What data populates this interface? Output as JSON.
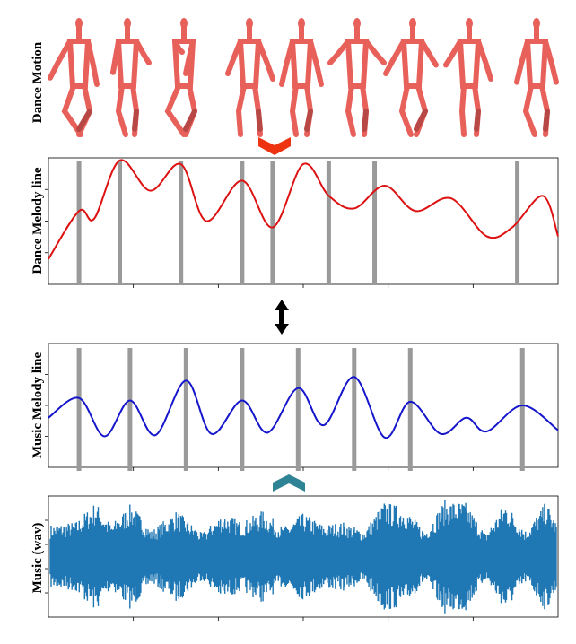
{
  "labels": {
    "dance_motion": "Dance Motion",
    "dance_melody": "Dance Melody line",
    "music_melody": "Music Melody line",
    "music_wav": "Music (wav)"
  },
  "colors": {
    "dancer": "#e8605a",
    "dancer_dark": "#b84845",
    "dance_line": "#dd1111",
    "music_line": "#1515cc",
    "beat_bar": "#9a9a9a",
    "wave": "#1f77b4",
    "arrow_down": "#ee3311",
    "arrow_up": "#2e8494",
    "double_arrow": "#000000"
  },
  "icons": {
    "dancer": "stick-figure-dancer-icon",
    "down_chevron": "chevron-down-icon",
    "up_chevron": "chevron-up-icon",
    "double_arrow": "double-arrow-vertical-icon"
  },
  "dance_poses": 9,
  "chart_data": [
    {
      "type": "line",
      "ylabel": "Dance Melody line",
      "series": [
        {
          "x": [
            0.0,
            0.06,
            0.09,
            0.14,
            0.2,
            0.26,
            0.31,
            0.38,
            0.44,
            0.5,
            0.55,
            0.6,
            0.66,
            0.72,
            0.79,
            0.86,
            0.91,
            0.97,
            1.0
          ],
          "y": [
            0.2,
            0.58,
            0.52,
            0.98,
            0.74,
            0.95,
            0.5,
            0.82,
            0.45,
            0.95,
            0.7,
            0.6,
            0.78,
            0.58,
            0.68,
            0.38,
            0.45,
            0.7,
            0.38
          ]
        }
      ],
      "beat_markers": [
        0.06,
        0.14,
        0.26,
        0.38,
        0.44,
        0.55,
        0.64,
        0.92
      ],
      "grid": false
    },
    {
      "type": "line",
      "ylabel": "Music Melody line",
      "series": [
        {
          "x": [
            0.0,
            0.06,
            0.11,
            0.16,
            0.21,
            0.27,
            0.32,
            0.38,
            0.43,
            0.49,
            0.54,
            0.6,
            0.66,
            0.71,
            0.77,
            0.82,
            0.86,
            0.93,
            1.0
          ],
          "y": [
            0.4,
            0.56,
            0.25,
            0.54,
            0.26,
            0.7,
            0.27,
            0.54,
            0.28,
            0.64,
            0.34,
            0.73,
            0.24,
            0.53,
            0.27,
            0.4,
            0.29,
            0.5,
            0.3
          ]
        }
      ],
      "beat_markers": [
        0.06,
        0.16,
        0.27,
        0.38,
        0.49,
        0.6,
        0.71,
        0.93
      ],
      "grid": false
    },
    {
      "type": "area",
      "ylabel": "Music (wav)",
      "series": [
        {
          "x": [
            0.0,
            0.05,
            0.09,
            0.12,
            0.16,
            0.2,
            0.25,
            0.3,
            0.34,
            0.38,
            0.42,
            0.46,
            0.5,
            0.54,
            0.58,
            0.62,
            0.66,
            0.7,
            0.74,
            0.78,
            0.82,
            0.86,
            0.9,
            0.94,
            0.98,
            1.0
          ],
          "y": [
            0.55,
            0.6,
            0.95,
            0.55,
            0.92,
            0.45,
            0.8,
            0.4,
            0.75,
            0.6,
            0.8,
            0.5,
            0.75,
            0.55,
            0.6,
            0.45,
            0.95,
            0.85,
            0.45,
            0.98,
            0.95,
            0.4,
            0.95,
            0.45,
            0.95,
            0.6
          ]
        }
      ],
      "grid": false
    }
  ]
}
